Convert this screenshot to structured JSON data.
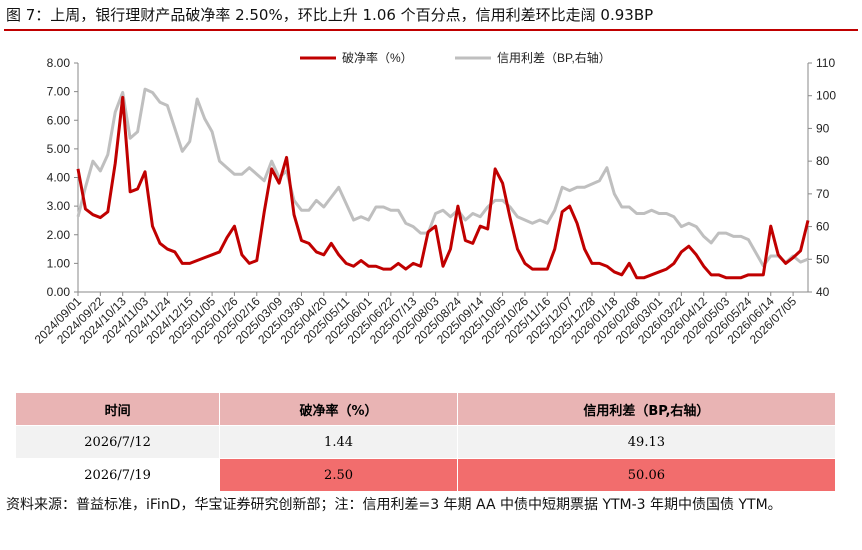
{
  "header": {
    "title": "图 7：上周，银行理财产品破净率 2.50%，环比上升 1.06 个百分点，信用利差环比走阔 0.93BP"
  },
  "chart_data": {
    "type": "line",
    "categories": [
      "2024/09/01",
      null,
      null,
      "2024/09/22",
      null,
      null,
      "2024/10/13",
      null,
      null,
      "2024/11/03",
      null,
      null,
      "2024/11/24",
      null,
      null,
      "2024/12/15",
      null,
      null,
      "2025/01/05",
      null,
      null,
      "2025/01/26",
      null,
      null,
      "2025/02/16",
      null,
      null,
      "2025/03/09",
      null,
      null,
      "2025/03/30",
      null,
      null,
      "2025/04/20",
      null,
      null,
      "2025/05/11",
      null,
      null,
      "2025/06/01",
      null,
      null,
      "2025/06/22",
      null,
      null,
      "2025/07/13",
      null,
      null,
      "2025/08/03",
      null,
      null,
      "2025/08/24",
      null,
      null,
      "2025/09/14",
      null,
      null,
      "2025/10/05",
      null,
      null,
      "2025/10/26",
      null,
      null,
      "2025/11/16",
      null,
      null,
      "2025/12/07",
      null,
      null,
      "2025/12/28",
      null,
      null,
      "2026/01/18",
      null,
      null,
      "2026/02/08",
      null,
      null,
      "2026/03/01",
      null,
      null,
      "2026/03/22",
      null,
      null,
      "2026/04/12",
      null,
      null,
      "2026/05/03",
      null,
      null,
      "2026/05/24",
      null,
      null,
      "2026/06/14",
      null,
      null,
      "2026/07/05",
      null,
      null
    ],
    "series": [
      {
        "name": "破净率（%）",
        "color": "#c00000",
        "values": [
          4.3,
          2.9,
          2.7,
          2.6,
          2.8,
          4.5,
          6.8,
          3.5,
          3.6,
          4.2,
          2.3,
          1.7,
          1.5,
          1.4,
          1.0,
          1.0,
          1.1,
          1.2,
          1.3,
          1.4,
          1.9,
          2.3,
          1.3,
          1.0,
          1.1,
          2.8,
          4.3,
          3.8,
          4.7,
          2.7,
          1.8,
          1.7,
          1.4,
          1.3,
          1.7,
          1.3,
          1.0,
          0.9,
          1.1,
          0.9,
          0.9,
          0.8,
          0.8,
          1.0,
          0.8,
          1.0,
          0.9,
          2.1,
          2.3,
          0.9,
          1.5,
          3.0,
          1.8,
          1.7,
          2.3,
          2.2,
          4.3,
          3.8,
          2.6,
          1.5,
          1.0,
          0.8,
          0.8,
          0.8,
          1.5,
          2.8,
          3.0,
          2.4,
          1.5,
          1.0,
          1.0,
          0.9,
          0.7,
          0.6,
          1.0,
          0.5,
          0.5,
          0.6,
          0.7,
          0.8,
          1.0,
          1.4,
          1.6,
          1.3,
          0.9,
          0.6,
          0.6,
          0.5,
          0.5,
          0.5,
          0.6,
          0.6,
          0.6,
          2.3,
          1.3,
          1.0,
          1.2,
          1.44,
          2.5
        ]
      },
      {
        "name": "信用利差（BP,右轴）",
        "color": "#bfbfbf",
        "axis": "y2",
        "values": [
          63,
          72,
          80,
          77,
          82,
          95,
          101,
          87,
          89,
          102,
          101,
          98,
          97,
          90,
          83,
          86,
          99,
          93,
          89,
          80,
          78,
          76,
          76,
          78,
          76,
          74,
          80,
          75,
          77,
          68,
          65,
          65,
          68,
          66,
          69,
          72,
          67,
          62,
          63,
          62,
          66,
          66,
          65,
          65,
          61,
          60,
          58,
          58,
          64,
          65,
          63,
          65,
          62,
          64,
          63,
          66,
          68,
          68,
          66,
          63,
          62,
          61,
          62,
          61,
          65,
          72,
          71,
          72,
          72,
          73,
          74,
          78,
          70,
          66,
          66,
          64,
          64,
          65,
          64,
          64,
          63,
          60,
          61,
          60,
          57,
          55,
          58,
          58,
          57,
          57,
          56,
          52,
          48,
          51,
          51,
          49,
          51,
          49.13,
          50.06
        ]
      }
    ],
    "ylim": [
      0,
      8
    ],
    "yticks": [
      {
        "value": 0,
        "label": "0.00"
      },
      {
        "value": 1,
        "label": "1.00"
      },
      {
        "value": 2,
        "label": "2.00"
      },
      {
        "value": 3,
        "label": "3.00"
      },
      {
        "value": 4,
        "label": "4.00"
      },
      {
        "value": 5,
        "label": "5.00"
      },
      {
        "value": 6,
        "label": "6.00"
      },
      {
        "value": 7,
        "label": "7.00"
      },
      {
        "value": 8,
        "label": "8.00"
      }
    ],
    "y2lim": [
      40,
      110
    ],
    "y2ticks": [
      40,
      50,
      60,
      70,
      80,
      90,
      100,
      110
    ],
    "legend": "top"
  },
  "table": {
    "header": [
      "时间",
      "破净率（%）",
      "信用利差（BP,右轴）"
    ],
    "rows": [
      [
        "2026/7/12",
        "1.44",
        "49.13"
      ],
      [
        "2026/7/19",
        "2.50",
        "50.06"
      ]
    ]
  },
  "source": "资料来源：普益标准，iFinD，华宝证券研究创新部；注：信用利差=3 年期 AA 中债中短期票据 YTM-3 年期中债国债 YTM。"
}
